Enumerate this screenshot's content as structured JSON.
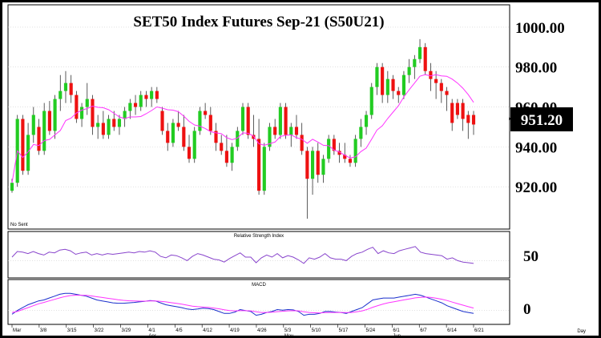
{
  "chart_data": [
    {
      "type": "candlestick",
      "title": "SET50  Index  Futures  Sep-21  (S50U21)",
      "last_price_label": "951.20",
      "corner_note": "No Sent",
      "ylim": [
        900,
        1010
      ],
      "yticks": [
        "920.00",
        "940.00",
        "960.00",
        "980.00",
        "1000.00"
      ],
      "ytick_values": [
        920,
        940,
        960,
        980,
        1000
      ],
      "colors": {
        "up": "#22cc22",
        "down": "#ee1111",
        "ma": "#ff33ff",
        "label_bg": "#000000",
        "label_fg": "#ffffff"
      },
      "x_labels": [
        "Mar",
        "3/8",
        "3/15",
        "3/22",
        "3/29",
        "4/1",
        "4/5",
        "4/12",
        "4/19",
        "4/26",
        "5/3",
        "5/10",
        "5/17",
        "5/24",
        "6/1",
        "6/7",
        "6/14",
        "6/21"
      ],
      "x_month_labels": [
        "Apr",
        "May",
        "Jun"
      ],
      "x_axis_unit": "Day",
      "candles": [
        {
          "o": 918,
          "h": 924,
          "l": 917,
          "c": 922
        },
        {
          "o": 922,
          "h": 956,
          "l": 920,
          "c": 954
        },
        {
          "o": 954,
          "h": 956,
          "l": 926,
          "c": 928
        },
        {
          "o": 928,
          "h": 952,
          "l": 926,
          "c": 946
        },
        {
          "o": 946,
          "h": 960,
          "l": 942,
          "c": 956
        },
        {
          "o": 950,
          "h": 954,
          "l": 936,
          "c": 938
        },
        {
          "o": 938,
          "h": 962,
          "l": 936,
          "c": 958
        },
        {
          "o": 958,
          "h": 963,
          "l": 946,
          "c": 948
        },
        {
          "o": 948,
          "h": 966,
          "l": 944,
          "c": 964
        },
        {
          "o": 964,
          "h": 976,
          "l": 958,
          "c": 968
        },
        {
          "o": 968,
          "h": 978,
          "l": 962,
          "c": 972
        },
        {
          "o": 972,
          "h": 976,
          "l": 962,
          "c": 966
        },
        {
          "o": 966,
          "h": 968,
          "l": 952,
          "c": 954
        },
        {
          "o": 954,
          "h": 962,
          "l": 950,
          "c": 960
        },
        {
          "o": 960,
          "h": 972,
          "l": 956,
          "c": 964
        },
        {
          "o": 964,
          "h": 966,
          "l": 946,
          "c": 950
        },
        {
          "o": 950,
          "h": 956,
          "l": 944,
          "c": 952
        },
        {
          "o": 952,
          "h": 958,
          "l": 944,
          "c": 946
        },
        {
          "o": 946,
          "h": 956,
          "l": 944,
          "c": 954
        },
        {
          "o": 954,
          "h": 958,
          "l": 948,
          "c": 950
        },
        {
          "o": 950,
          "h": 956,
          "l": 946,
          "c": 954
        },
        {
          "o": 954,
          "h": 960,
          "l": 950,
          "c": 958
        },
        {
          "o": 958,
          "h": 964,
          "l": 954,
          "c": 962
        },
        {
          "o": 962,
          "h": 966,
          "l": 956,
          "c": 960
        },
        {
          "o": 960,
          "h": 968,
          "l": 958,
          "c": 966
        },
        {
          "o": 966,
          "h": 968,
          "l": 960,
          "c": 964
        },
        {
          "o": 964,
          "h": 970,
          "l": 960,
          "c": 968
        },
        {
          "o": 968,
          "h": 970,
          "l": 962,
          "c": 964
        },
        {
          "o": 958,
          "h": 960,
          "l": 946,
          "c": 948
        },
        {
          "o": 948,
          "h": 952,
          "l": 938,
          "c": 942
        },
        {
          "o": 942,
          "h": 954,
          "l": 940,
          "c": 952
        },
        {
          "o": 952,
          "h": 958,
          "l": 948,
          "c": 950
        },
        {
          "o": 950,
          "h": 956,
          "l": 938,
          "c": 940
        },
        {
          "o": 940,
          "h": 946,
          "l": 932,
          "c": 934
        },
        {
          "o": 934,
          "h": 950,
          "l": 932,
          "c": 948
        },
        {
          "o": 948,
          "h": 960,
          "l": 946,
          "c": 958
        },
        {
          "o": 958,
          "h": 962,
          "l": 954,
          "c": 956
        },
        {
          "o": 956,
          "h": 960,
          "l": 946,
          "c": 948
        },
        {
          "o": 948,
          "h": 952,
          "l": 938,
          "c": 942
        },
        {
          "o": 942,
          "h": 946,
          "l": 936,
          "c": 938
        },
        {
          "o": 938,
          "h": 946,
          "l": 930,
          "c": 932
        },
        {
          "o": 932,
          "h": 942,
          "l": 928,
          "c": 940
        },
        {
          "o": 940,
          "h": 950,
          "l": 938,
          "c": 948
        },
        {
          "o": 948,
          "h": 962,
          "l": 946,
          "c": 960
        },
        {
          "o": 960,
          "h": 962,
          "l": 944,
          "c": 946
        },
        {
          "o": 946,
          "h": 956,
          "l": 940,
          "c": 944
        },
        {
          "o": 944,
          "h": 954,
          "l": 916,
          "c": 918
        },
        {
          "o": 918,
          "h": 942,
          "l": 916,
          "c": 940
        },
        {
          "o": 940,
          "h": 952,
          "l": 938,
          "c": 950
        },
        {
          "o": 950,
          "h": 954,
          "l": 944,
          "c": 946
        },
        {
          "o": 946,
          "h": 962,
          "l": 944,
          "c": 960
        },
        {
          "o": 960,
          "h": 962,
          "l": 944,
          "c": 946
        },
        {
          "o": 946,
          "h": 952,
          "l": 940,
          "c": 950
        },
        {
          "o": 950,
          "h": 956,
          "l": 944,
          "c": 946
        },
        {
          "o": 946,
          "h": 952,
          "l": 936,
          "c": 938
        },
        {
          "o": 938,
          "h": 940,
          "l": 904,
          "c": 924
        },
        {
          "o": 924,
          "h": 940,
          "l": 916,
          "c": 938
        },
        {
          "o": 938,
          "h": 942,
          "l": 922,
          "c": 926
        },
        {
          "o": 926,
          "h": 936,
          "l": 922,
          "c": 934
        },
        {
          "o": 934,
          "h": 946,
          "l": 932,
          "c": 944
        },
        {
          "o": 944,
          "h": 946,
          "l": 936,
          "c": 938
        },
        {
          "o": 938,
          "h": 942,
          "l": 932,
          "c": 936
        },
        {
          "o": 936,
          "h": 942,
          "l": 932,
          "c": 934
        },
        {
          "o": 934,
          "h": 936,
          "l": 930,
          "c": 932
        },
        {
          "o": 932,
          "h": 946,
          "l": 930,
          "c": 944
        },
        {
          "o": 944,
          "h": 954,
          "l": 940,
          "c": 950
        },
        {
          "o": 950,
          "h": 958,
          "l": 946,
          "c": 956
        },
        {
          "o": 956,
          "h": 972,
          "l": 954,
          "c": 970
        },
        {
          "o": 970,
          "h": 982,
          "l": 966,
          "c": 980
        },
        {
          "o": 980,
          "h": 982,
          "l": 962,
          "c": 966
        },
        {
          "o": 966,
          "h": 978,
          "l": 962,
          "c": 974
        },
        {
          "o": 974,
          "h": 976,
          "l": 964,
          "c": 968
        },
        {
          "o": 968,
          "h": 970,
          "l": 962,
          "c": 966
        },
        {
          "o": 966,
          "h": 978,
          "l": 964,
          "c": 976
        },
        {
          "o": 976,
          "h": 984,
          "l": 972,
          "c": 980
        },
        {
          "o": 980,
          "h": 986,
          "l": 974,
          "c": 984
        },
        {
          "o": 984,
          "h": 994,
          "l": 982,
          "c": 990
        },
        {
          "o": 990,
          "h": 992,
          "l": 976,
          "c": 978
        },
        {
          "o": 978,
          "h": 982,
          "l": 968,
          "c": 974
        },
        {
          "o": 974,
          "h": 978,
          "l": 964,
          "c": 972
        },
        {
          "o": 972,
          "h": 974,
          "l": 962,
          "c": 968
        },
        {
          "o": 968,
          "h": 970,
          "l": 958,
          "c": 966
        },
        {
          "o": 962,
          "h": 964,
          "l": 948,
          "c": 952
        },
        {
          "o": 962,
          "h": 964,
          "l": 954,
          "c": 956
        },
        {
          "o": 962,
          "h": 964,
          "l": 948,
          "c": 954
        },
        {
          "o": 956,
          "h": 958,
          "l": 944,
          "c": 952
        },
        {
          "o": 956,
          "h": 958,
          "l": 946,
          "c": 951.2
        }
      ]
    },
    {
      "type": "line",
      "title": "Relative  Strength  Index",
      "ytick_label": "50",
      "ytick_value": 50,
      "ylim": [
        30,
        80
      ],
      "series": [
        {
          "color": "#8844cc",
          "values": [
            55,
            63,
            62,
            60,
            63,
            60,
            58,
            62,
            61,
            65,
            66,
            64,
            59,
            61,
            62,
            58,
            60,
            58,
            60,
            59,
            60,
            61,
            62,
            61,
            63,
            62,
            64,
            62,
            56,
            54,
            58,
            57,
            54,
            50,
            56,
            60,
            58,
            55,
            52,
            51,
            48,
            53,
            57,
            61,
            55,
            55,
            47,
            54,
            58,
            55,
            60,
            54,
            57,
            55,
            51,
            46,
            54,
            52,
            55,
            60,
            54,
            52,
            52,
            50,
            56,
            60,
            62,
            66,
            69,
            60,
            64,
            61,
            60,
            64,
            66,
            68,
            70,
            62,
            60,
            59,
            58,
            57,
            52,
            54,
            50,
            48,
            47,
            46
          ]
        }
      ]
    },
    {
      "type": "line",
      "title": "MACD",
      "ytick_label": "0",
      "ytick_value": 0,
      "ylim": [
        -6,
        12
      ],
      "series": [
        {
          "color": "#1a2fcc",
          "values": [
            -2,
            0,
            1.5,
            3,
            4,
            5,
            5.5,
            6.5,
            7.5,
            8.5,
            9,
            9,
            8.5,
            8,
            7.5,
            6.5,
            5.5,
            5,
            4.5,
            4,
            3.8,
            3.8,
            4,
            4.2,
            4.5,
            4.8,
            5.2,
            5,
            4,
            3,
            2.5,
            2,
            1.5,
            0.8,
            0.5,
            0.8,
            1.2,
            1,
            0.5,
            -0.5,
            -1.5,
            -1.5,
            -0.8,
            0.5,
            0,
            -0.5,
            -2.5,
            -2,
            -1,
            -0.5,
            0.5,
            0.2,
            0.5,
            0.3,
            -0.5,
            -2.5,
            -2,
            -2,
            -1.5,
            -0.5,
            -0.5,
            -0.8,
            -1,
            -1.5,
            -0.5,
            0.5,
            1.5,
            3.5,
            5.5,
            6,
            6.5,
            6.5,
            6.5,
            7,
            7.5,
            8,
            8.5,
            8,
            7,
            6,
            5,
            4,
            2.5,
            1.5,
            0.5,
            -0.5,
            -1,
            -1.5
          ]
        },
        {
          "color": "#ff33ff",
          "values": [
            -1,
            -0.5,
            0.5,
            1.5,
            2.5,
            3.5,
            4.2,
            5,
            5.8,
            6.6,
            7.3,
            7.8,
            8,
            8,
            7.9,
            7.6,
            7.2,
            6.8,
            6.4,
            6,
            5.6,
            5.3,
            5.1,
            5,
            4.9,
            4.9,
            5,
            5,
            4.8,
            4.5,
            4.1,
            3.7,
            3.3,
            2.8,
            2.3,
            2,
            1.8,
            1.6,
            1.3,
            0.9,
            0.4,
            0,
            -0.2,
            -0.1,
            -0.1,
            -0.2,
            -0.7,
            -1,
            -1,
            -0.9,
            -0.6,
            -0.4,
            -0.2,
            -0.1,
            -0.2,
            -0.7,
            -1,
            -1.2,
            -1.3,
            -1.1,
            -1,
            -1,
            -1,
            -1.1,
            -1,
            -0.7,
            -0.2,
            0.6,
            1.7,
            2.6,
            3.4,
            4.1,
            4.6,
            5.1,
            5.6,
            6.1,
            6.6,
            6.9,
            7,
            6.8,
            6.4,
            5.9,
            5.2,
            4.4,
            3.6,
            2.8,
            2,
            1.3
          ]
        }
      ]
    }
  ]
}
